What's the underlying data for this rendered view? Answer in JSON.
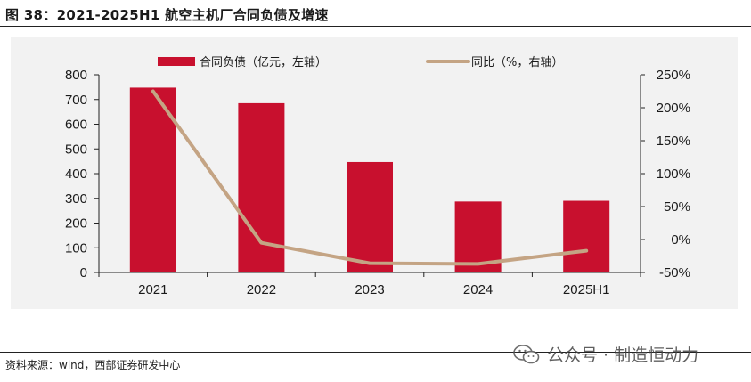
{
  "figure": {
    "title": "图 38：2021-2025H1 航空主机厂合同负债及增速",
    "source": "资料来源：wind，西部证券研发中心",
    "watermark": "公众号 · 制造恒动力",
    "watermark_icon": "wechat-icon"
  },
  "colors": {
    "bar": "#c8102e",
    "line": "#c4a484",
    "background": "#f2f2f2"
  },
  "chart_data": {
    "type": "bar",
    "categories": [
      "2021",
      "2022",
      "2023",
      "2024",
      "2025H1"
    ],
    "series": [
      {
        "name": "合同负债（亿元，左轴）",
        "kind": "bar",
        "axis": "left",
        "values": [
          748,
          685,
          447,
          287,
          290
        ]
      },
      {
        "name": "同比（%，右轴）",
        "kind": "line",
        "axis": "right",
        "values": [
          225,
          -5,
          -36,
          -37,
          -17
        ]
      }
    ],
    "left_axis": {
      "ylim": [
        0,
        800
      ],
      "ticks": [
        "0",
        "100",
        "200",
        "300",
        "400",
        "500",
        "600",
        "700",
        "800"
      ]
    },
    "right_axis": {
      "ylim": [
        -50,
        250
      ],
      "ticks": [
        "-50%",
        "0%",
        "50%",
        "100%",
        "150%",
        "200%",
        "250%"
      ]
    },
    "legend_position": "top-center",
    "grid": false
  }
}
